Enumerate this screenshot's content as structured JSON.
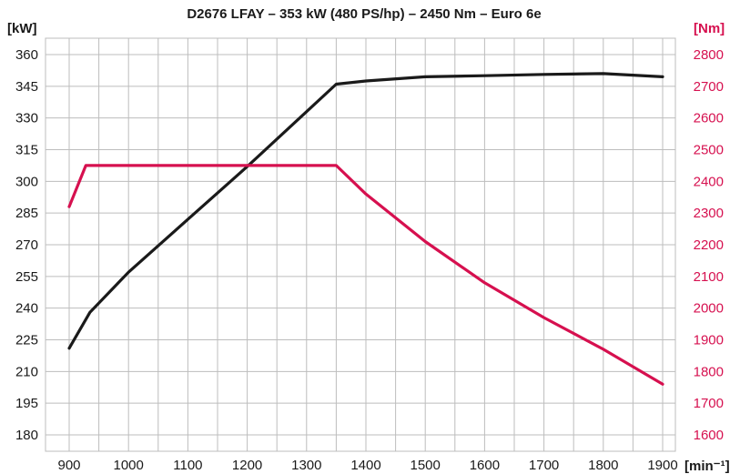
{
  "chart_data": {
    "type": "line",
    "title": "D2676 LFAY – 353 kW (480 PS/hp) – 2450 Nm – Euro 6e",
    "x_unit": "[min⁻¹]",
    "y_left_unit": "[kW]",
    "y_right_unit": "[Nm]",
    "xlim": [
      900,
      1900
    ],
    "ylim_left": [
      180,
      360
    ],
    "ylim_right": [
      1600,
      2800
    ],
    "x_ticks": [
      900,
      1000,
      1100,
      1200,
      1300,
      1400,
      1500,
      1600,
      1700,
      1800,
      1900
    ],
    "y_left_ticks": [
      180,
      195,
      210,
      225,
      240,
      255,
      270,
      285,
      300,
      315,
      330,
      345,
      360
    ],
    "y_right_ticks": [
      1600,
      1700,
      1800,
      1900,
      2000,
      2100,
      2200,
      2300,
      2400,
      2500,
      2600,
      2700,
      2800
    ],
    "grid": true,
    "colors": {
      "power": "#1a1a1a",
      "torque": "#d6104f",
      "grid": "#bdbdbd"
    },
    "series": [
      {
        "axis": "left",
        "color": "#1a1a1a",
        "x": [
          900,
          935,
          1000,
          1100,
          1200,
          1350,
          1400,
          1500,
          1600,
          1700,
          1800,
          1900
        ],
        "values": [
          221,
          238,
          257,
          282,
          307,
          346,
          347.5,
          349.5,
          350,
          350.6,
          351,
          349.5
        ]
      },
      {
        "axis": "right",
        "color": "#d6104f",
        "x": [
          900,
          928,
          1000,
          1200,
          1350,
          1400,
          1500,
          1600,
          1700,
          1800,
          1900
        ],
        "values": [
          2320,
          2450,
          2450,
          2450,
          2450,
          2360,
          2210,
          2080,
          1970,
          1870,
          1760
        ]
      }
    ]
  }
}
